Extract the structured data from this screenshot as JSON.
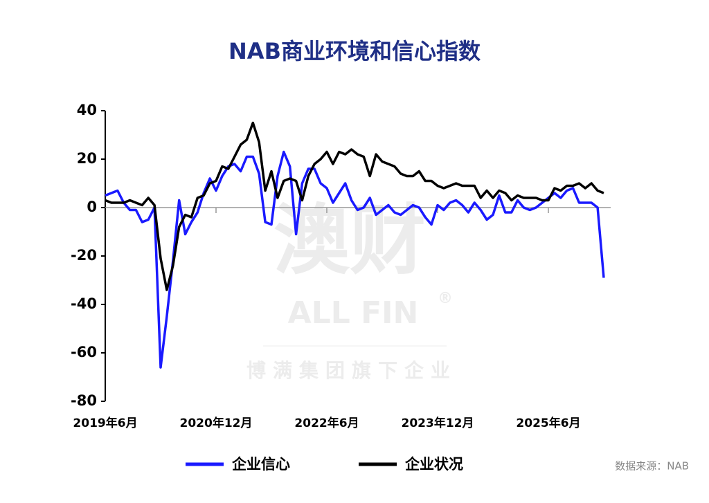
{
  "chart_data": {
    "type": "line",
    "title": "NAB商业环境和信心指数",
    "categories": [
      "2019年6月",
      null,
      null,
      null,
      null,
      null,
      null,
      null,
      null,
      null,
      null,
      null,
      null,
      null,
      null,
      null,
      null,
      null,
      "2020年12月",
      null,
      null,
      null,
      null,
      null,
      null,
      null,
      null,
      null,
      null,
      null,
      null,
      null,
      null,
      null,
      null,
      null,
      "2022年6月",
      null,
      null,
      null,
      null,
      null,
      null,
      null,
      null,
      null,
      null,
      null,
      null,
      null,
      null,
      null,
      null,
      null,
      "2023年12月",
      null,
      null,
      null,
      null,
      null,
      null,
      null,
      null,
      null,
      null,
      null,
      null,
      null,
      null,
      null,
      null,
      null,
      "2025年6月",
      null,
      null,
      null,
      null,
      null,
      null,
      null,
      null,
      null
    ],
    "series": [
      {
        "name": "企业信心",
        "color": "#1a1aff",
        "values": [
          5,
          6,
          7,
          2,
          -1,
          -1,
          -6,
          -5,
          0,
          -66,
          -45,
          -22,
          3,
          -11,
          -6,
          -2,
          6,
          12,
          7,
          13,
          17,
          18,
          15,
          21,
          21,
          14,
          -6,
          -7,
          13,
          23,
          17,
          -11,
          10,
          16,
          16,
          10,
          8,
          2,
          6,
          10,
          3,
          -1,
          0,
          4,
          -3,
          -1,
          1,
          -2,
          -3,
          -1,
          1,
          0,
          -4,
          -7,
          1,
          -1,
          2,
          3,
          1,
          -2,
          2,
          -1,
          -5,
          -3,
          5,
          -2,
          -2,
          3,
          0,
          -1,
          0,
          2,
          4,
          6,
          4,
          7,
          8,
          2,
          2,
          2,
          0,
          -29
        ]
      },
      {
        "name": "企业状况",
        "color": "#000000",
        "values": [
          3,
          2,
          2,
          2,
          3,
          2,
          1,
          4,
          1,
          -21,
          -34,
          -24,
          -8,
          -3,
          -4,
          4,
          5,
          10,
          11,
          17,
          16,
          21,
          26,
          28,
          35,
          27,
          7,
          15,
          4,
          11,
          12,
          11,
          3,
          13,
          18,
          20,
          23,
          18,
          23,
          22,
          24,
          22,
          21,
          13,
          22,
          19,
          18,
          17,
          14,
          13,
          13,
          15,
          11,
          11,
          9,
          8,
          9,
          10,
          9,
          9,
          9,
          4,
          7,
          4,
          7,
          6,
          3,
          5,
          4,
          4,
          4,
          3,
          3,
          8,
          7,
          9,
          9,
          10,
          8,
          10,
          7,
          6
        ]
      }
    ],
    "ylim": [
      -80,
      40
    ],
    "yticks": [
      40,
      20,
      0,
      -20,
      -40,
      -60,
      -80
    ],
    "legend": "bottom",
    "source": "数据来源：NAB",
    "watermark": {
      "logo": "澳财",
      "brand": "ALL FIN",
      "mark": "®",
      "tagline": "博满集团旗下企业"
    }
  }
}
